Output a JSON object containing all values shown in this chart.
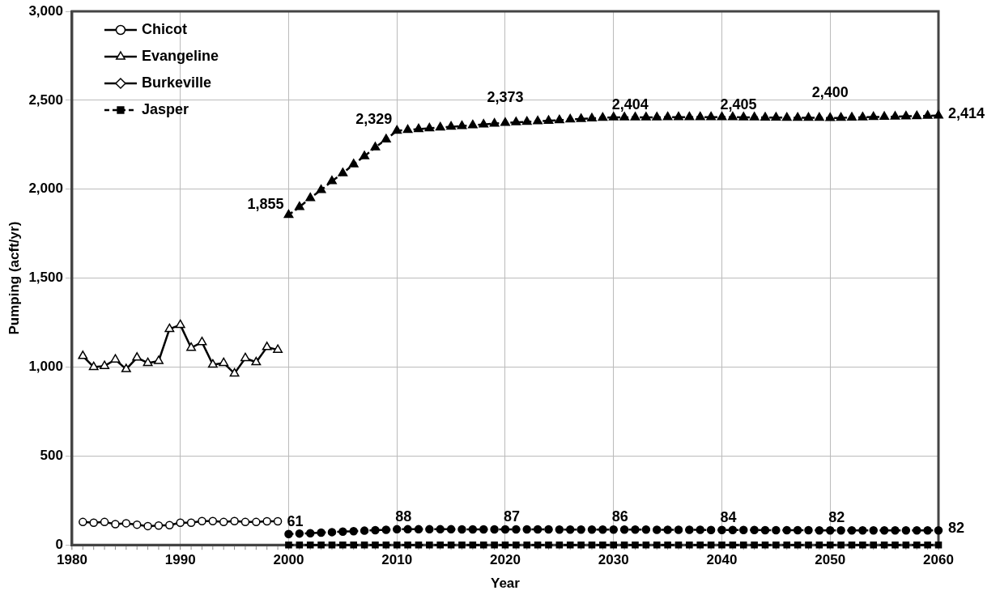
{
  "chart_data": {
    "type": "line",
    "xlabel": "Year",
    "ylabel": "Pumping (acft/yr)",
    "xlim": [
      1980,
      2060
    ],
    "xticks": [
      1980,
      1990,
      2000,
      2010,
      2020,
      2030,
      2040,
      2050,
      2060
    ],
    "ylim": [
      0,
      3000
    ],
    "yticks": [
      {
        "value": 0,
        "label": "0"
      },
      {
        "value": 500,
        "label": "500"
      },
      {
        "value": 1000,
        "label": "1,000"
      },
      {
        "value": 1500,
        "label": "1,500"
      },
      {
        "value": 2000,
        "label": "2,000"
      },
      {
        "value": 2500,
        "label": "2,500"
      },
      {
        "value": 3000,
        "label": "3,000"
      }
    ],
    "grid": true,
    "legend": "top left",
    "series": [
      {
        "name": "Chicot",
        "color": "#000000",
        "marker": "circle",
        "line_style": "solid",
        "x": [
          1981,
          1982,
          1983,
          1984,
          1985,
          1986,
          1987,
          1988,
          1989,
          1990,
          1991,
          1992,
          1993,
          1994,
          1995,
          1996,
          1997,
          1998,
          1999
        ],
        "values": [
          129,
          125,
          129,
          117,
          122,
          114,
          106,
          109,
          111,
          125,
          125,
          134,
          134,
          129,
          134,
          129,
          129,
          133,
          133
        ]
      },
      {
        "name": "Evangeline",
        "color": "#000000",
        "marker": "triangle",
        "line_style": "solid",
        "x": [
          1981,
          1982,
          1983,
          1984,
          1985,
          1986,
          1987,
          1988,
          1989,
          1990,
          1991,
          1992,
          1993,
          1994,
          1995,
          1996,
          1997,
          1998,
          1999
        ],
        "values": [
          1062,
          1000,
          1006,
          1042,
          988,
          1053,
          1023,
          1034,
          1214,
          1237,
          1108,
          1140,
          1014,
          1023,
          964,
          1050,
          1027,
          1112,
          1097
        ]
      },
      {
        "name": "Burkeville",
        "color": "#000000",
        "marker": "diamond",
        "line_style": "solid"
      },
      {
        "name": "Jasper",
        "color": "#000000",
        "marker": "square",
        "line_style": "dashed",
        "x": [
          2000,
          2001,
          2002,
          2003,
          2004,
          2005,
          2006,
          2007,
          2008,
          2009,
          2010,
          2011,
          2012,
          2013,
          2014,
          2015,
          2016,
          2017,
          2018,
          2019,
          2020,
          2021,
          2022,
          2023,
          2024,
          2025,
          2026,
          2027,
          2028,
          2029,
          2030,
          2031,
          2032,
          2033,
          2034,
          2035,
          2036,
          2037,
          2038,
          2039,
          2040,
          2041,
          2042,
          2043,
          2044,
          2045,
          2046,
          2047,
          2048,
          2049,
          2050,
          2051,
          2052,
          2053,
          2054,
          2055,
          2056,
          2057,
          2058,
          2059,
          2060
        ],
        "values": [
          0,
          0,
          0,
          0,
          0,
          0,
          0,
          0,
          0,
          0,
          0,
          0,
          0,
          0,
          0,
          0,
          0,
          0,
          0,
          0,
          0,
          0,
          0,
          0,
          0,
          0,
          0,
          0,
          0,
          0,
          0,
          0,
          0,
          0,
          0,
          0,
          0,
          0,
          0,
          0,
          0,
          0,
          0,
          0,
          0,
          0,
          0,
          0,
          0,
          0,
          0,
          0,
          0,
          0,
          0,
          0,
          0,
          0,
          0,
          0,
          0
        ]
      },
      {
        "color": "#000000",
        "marker": "triangle",
        "line_style": "dashed",
        "x": [
          2000,
          2001,
          2002,
          2003,
          2004,
          2005,
          2006,
          2007,
          2008,
          2009,
          2010,
          2011,
          2012,
          2013,
          2014,
          2015,
          2016,
          2017,
          2018,
          2019,
          2020,
          2021,
          2022,
          2023,
          2024,
          2025,
          2026,
          2027,
          2028,
          2029,
          2030,
          2031,
          2032,
          2033,
          2034,
          2035,
          2036,
          2037,
          2038,
          2039,
          2040,
          2041,
          2042,
          2043,
          2044,
          2045,
          2046,
          2047,
          2048,
          2049,
          2050,
          2051,
          2052,
          2053,
          2054,
          2055,
          2056,
          2057,
          2058,
          2059,
          2060
        ],
        "values": [
          1855,
          1900,
          1950,
          1995,
          2045,
          2090,
          2140,
          2185,
          2235,
          2280,
          2329,
          2333,
          2338,
          2342,
          2347,
          2351,
          2355,
          2360,
          2364,
          2369,
          2373,
          2376,
          2379,
          2382,
          2385,
          2388,
          2392,
          2395,
          2398,
          2401,
          2404,
          2404,
          2404,
          2404,
          2404,
          2405,
          2405,
          2405,
          2405,
          2405,
          2405,
          2405,
          2404,
          2404,
          2403,
          2403,
          2402,
          2402,
          2401,
          2401,
          2400,
          2401,
          2403,
          2404,
          2406,
          2407,
          2408,
          2410,
          2411,
          2413,
          2414
        ],
        "value_labels": [
          "1,855",
          null,
          null,
          null,
          null,
          null,
          null,
          null,
          null,
          null,
          "2,329",
          null,
          null,
          null,
          null,
          null,
          null,
          null,
          null,
          null,
          "2,373",
          null,
          null,
          null,
          null,
          null,
          null,
          null,
          null,
          null,
          "2,404",
          null,
          null,
          null,
          null,
          null,
          null,
          null,
          null,
          null,
          "2,405",
          null,
          null,
          null,
          null,
          null,
          null,
          null,
          null,
          null,
          "2,400",
          null,
          null,
          null,
          null,
          null,
          null,
          null,
          null,
          null,
          "2,414"
        ]
      },
      {
        "color": "#000000",
        "marker": "circle",
        "line_style": "dashed",
        "x": [
          2000,
          2001,
          2002,
          2003,
          2004,
          2005,
          2006,
          2007,
          2008,
          2009,
          2010,
          2011,
          2012,
          2013,
          2014,
          2015,
          2016,
          2017,
          2018,
          2019,
          2020,
          2021,
          2022,
          2023,
          2024,
          2025,
          2026,
          2027,
          2028,
          2029,
          2030,
          2031,
          2032,
          2033,
          2034,
          2035,
          2036,
          2037,
          2038,
          2039,
          2040,
          2041,
          2042,
          2043,
          2044,
          2045,
          2046,
          2047,
          2048,
          2049,
          2050,
          2051,
          2052,
          2053,
          2054,
          2055,
          2056,
          2057,
          2058,
          2059,
          2060
        ],
        "values": [
          61,
          64,
          66,
          69,
          72,
          75,
          77,
          80,
          83,
          85,
          88,
          88,
          88,
          88,
          88,
          88,
          87,
          87,
          87,
          87,
          87,
          87,
          87,
          87,
          87,
          86,
          86,
          86,
          86,
          86,
          86,
          86,
          86,
          86,
          85,
          85,
          85,
          85,
          85,
          84,
          84,
          84,
          84,
          84,
          83,
          83,
          83,
          83,
          83,
          82,
          82,
          82,
          82,
          82,
          82,
          82,
          82,
          82,
          82,
          82,
          82
        ],
        "value_labels": [
          "61",
          null,
          null,
          null,
          null,
          null,
          null,
          null,
          null,
          null,
          "88",
          null,
          null,
          null,
          null,
          null,
          null,
          null,
          null,
          null,
          "87",
          null,
          null,
          null,
          null,
          null,
          null,
          null,
          null,
          null,
          "86",
          null,
          null,
          null,
          null,
          null,
          null,
          null,
          null,
          null,
          "84",
          null,
          null,
          null,
          null,
          null,
          null,
          null,
          null,
          null,
          "82",
          null,
          null,
          null,
          null,
          null,
          null,
          null,
          null,
          null,
          "82"
        ]
      }
    ]
  }
}
